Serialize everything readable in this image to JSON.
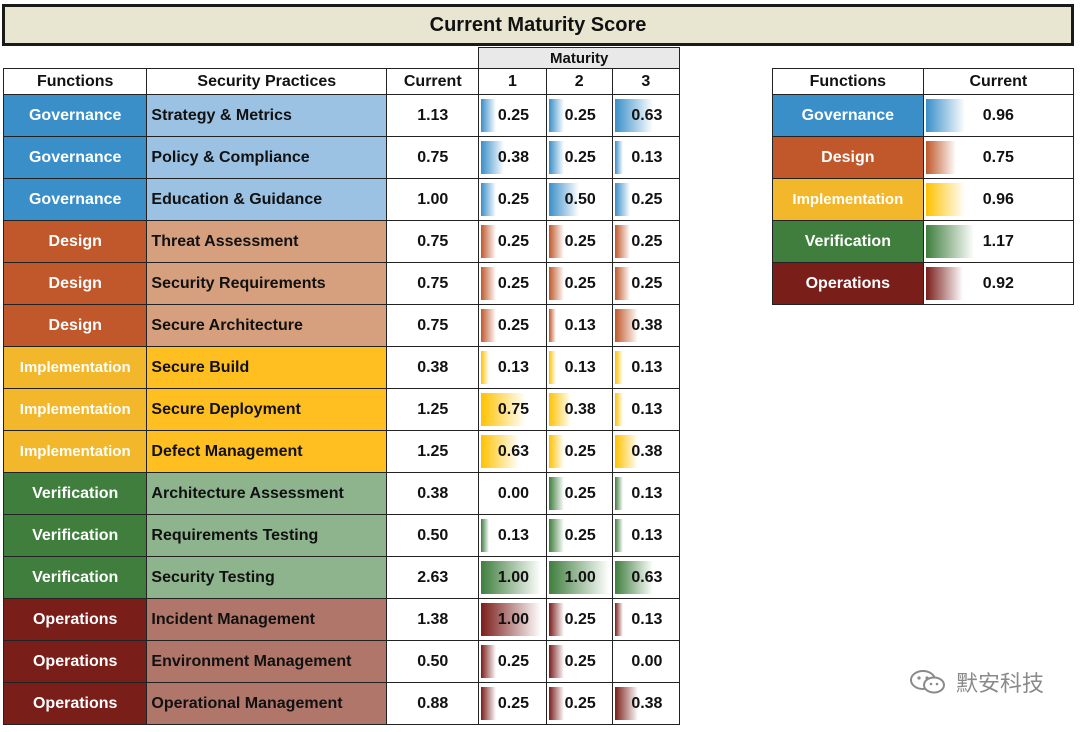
{
  "title": "Current Maturity Score",
  "main_headers": {
    "maturity": "Maturity",
    "functions": "Functions",
    "practices": "Security Practices",
    "current": "Current",
    "l1": "1",
    "l2": "2",
    "l3": "3"
  },
  "colors": {
    "Governance": {
      "fn": "#3a8fc9",
      "pr": "#9bc1e3",
      "bar": "#3a8fc9"
    },
    "Design": {
      "fn": "#c0582b",
      "pr": "#d6a07f",
      "bar": "#c0582b"
    },
    "Implementation": {
      "fn": "#f3b72c",
      "pr": "#ffbf21",
      "bar": "#ffc200"
    },
    "Verification": {
      "fn": "#3f7e3d",
      "pr": "#8db48c",
      "bar": "#3f7e3d"
    },
    "Operations": {
      "fn": "#7a1e1a",
      "pr": "#b0766a",
      "bar": "#7a1e1a"
    }
  },
  "rows": [
    {
      "function": "Governance",
      "practice": "Strategy & Metrics",
      "current": "1.13",
      "l1": "0.25",
      "l2": "0.25",
      "l3": "0.63"
    },
    {
      "function": "Governance",
      "practice": "Policy & Compliance",
      "current": "0.75",
      "l1": "0.38",
      "l2": "0.25",
      "l3": "0.13"
    },
    {
      "function": "Governance",
      "practice": "Education & Guidance",
      "current": "1.00",
      "l1": "0.25",
      "l2": "0.50",
      "l3": "0.25"
    },
    {
      "function": "Design",
      "practice": "Threat Assessment",
      "current": "0.75",
      "l1": "0.25",
      "l2": "0.25",
      "l3": "0.25"
    },
    {
      "function": "Design",
      "practice": "Security Requirements",
      "current": "0.75",
      "l1": "0.25",
      "l2": "0.25",
      "l3": "0.25"
    },
    {
      "function": "Design",
      "practice": "Secure Architecture",
      "current": "0.75",
      "l1": "0.25",
      "l2": "0.13",
      "l3": "0.38"
    },
    {
      "function": "Implementation",
      "practice": "Secure Build",
      "current": "0.38",
      "l1": "0.13",
      "l2": "0.13",
      "l3": "0.13"
    },
    {
      "function": "Implementation",
      "practice": "Secure Deployment",
      "current": "1.25",
      "l1": "0.75",
      "l2": "0.38",
      "l3": "0.13"
    },
    {
      "function": "Implementation",
      "practice": "Defect Management",
      "current": "1.25",
      "l1": "0.63",
      "l2": "0.25",
      "l3": "0.38"
    },
    {
      "function": "Verification",
      "practice": "Architecture Assessment",
      "current": "0.38",
      "l1": "0.00",
      "l2": "0.25",
      "l3": "0.13"
    },
    {
      "function": "Verification",
      "practice": "Requirements Testing",
      "current": "0.50",
      "l1": "0.13",
      "l2": "0.25",
      "l3": "0.13"
    },
    {
      "function": "Verification",
      "practice": "Security Testing",
      "current": "2.63",
      "l1": "1.00",
      "l2": "1.00",
      "l3": "0.63"
    },
    {
      "function": "Operations",
      "practice": "Incident Management",
      "current": "1.38",
      "l1": "1.00",
      "l2": "0.25",
      "l3": "0.13"
    },
    {
      "function": "Operations",
      "practice": "Environment Management",
      "current": "0.50",
      "l1": "0.25",
      "l2": "0.25",
      "l3": "0.00"
    },
    {
      "function": "Operations",
      "practice": "Operational Management",
      "current": "0.88",
      "l1": "0.25",
      "l2": "0.25",
      "l3": "0.38"
    }
  ],
  "summary_headers": {
    "functions": "Functions",
    "current": "Current"
  },
  "summary": [
    {
      "function": "Governance",
      "current": "0.96"
    },
    {
      "function": "Design",
      "current": "0.75"
    },
    {
      "function": "Implementation",
      "current": "0.96"
    },
    {
      "function": "Verification",
      "current": "1.17"
    },
    {
      "function": "Operations",
      "current": "0.92"
    }
  ],
  "watermark": "默安科技"
}
